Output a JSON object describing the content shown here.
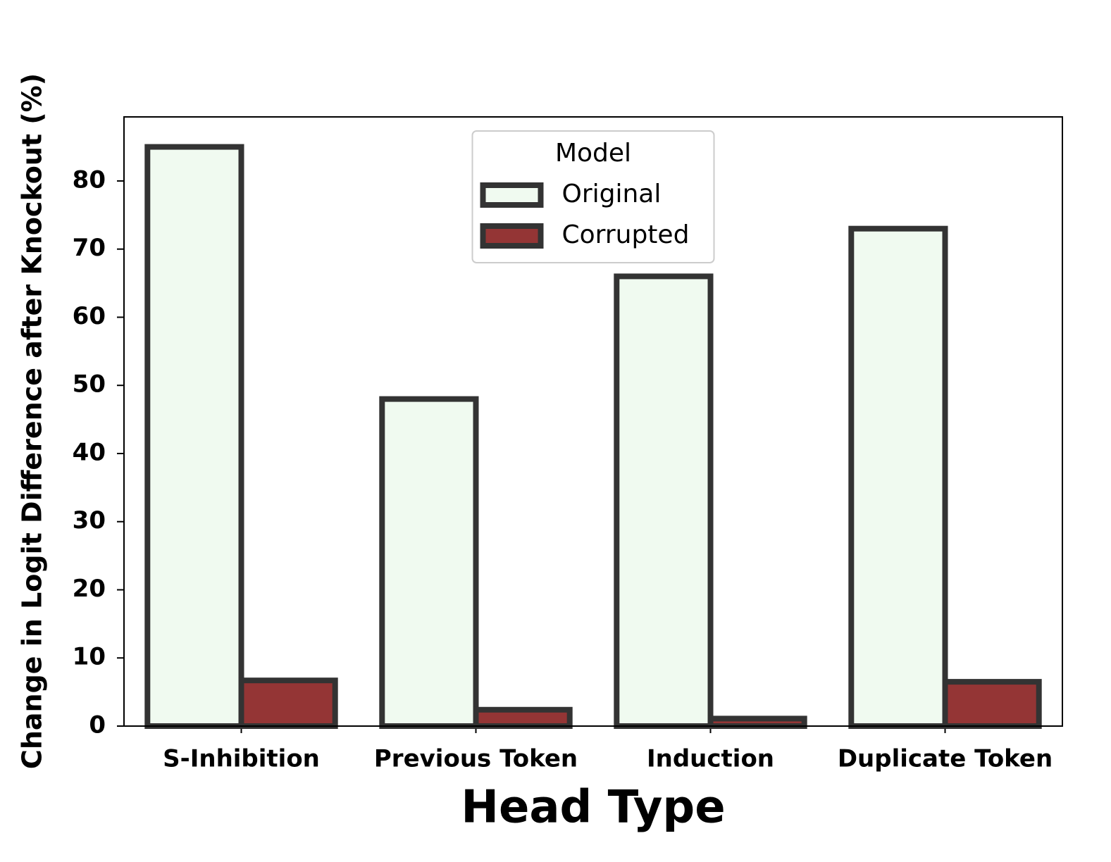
{
  "chart_data": {
    "type": "bar",
    "xlabel": "Head Type",
    "ylabel": "Change in Logit Difference after Knockout (%)",
    "categories": [
      "S-Inhibition",
      "Previous Token",
      "Induction",
      "Duplicate Token"
    ],
    "series": [
      {
        "name": "Original",
        "color": "#f0faf0",
        "values": [
          85,
          48,
          66,
          73
        ]
      },
      {
        "name": "Corrupted",
        "color": "#943535",
        "values": [
          6.7,
          2.4,
          1.1,
          6.5
        ]
      }
    ],
    "edgecolor": "#333333",
    "ylim": [
      0,
      89.4
    ],
    "yticks": [
      0,
      10,
      20,
      30,
      40,
      50,
      60,
      70,
      80
    ],
    "legend_title": "Model",
    "legend": "upper center"
  }
}
